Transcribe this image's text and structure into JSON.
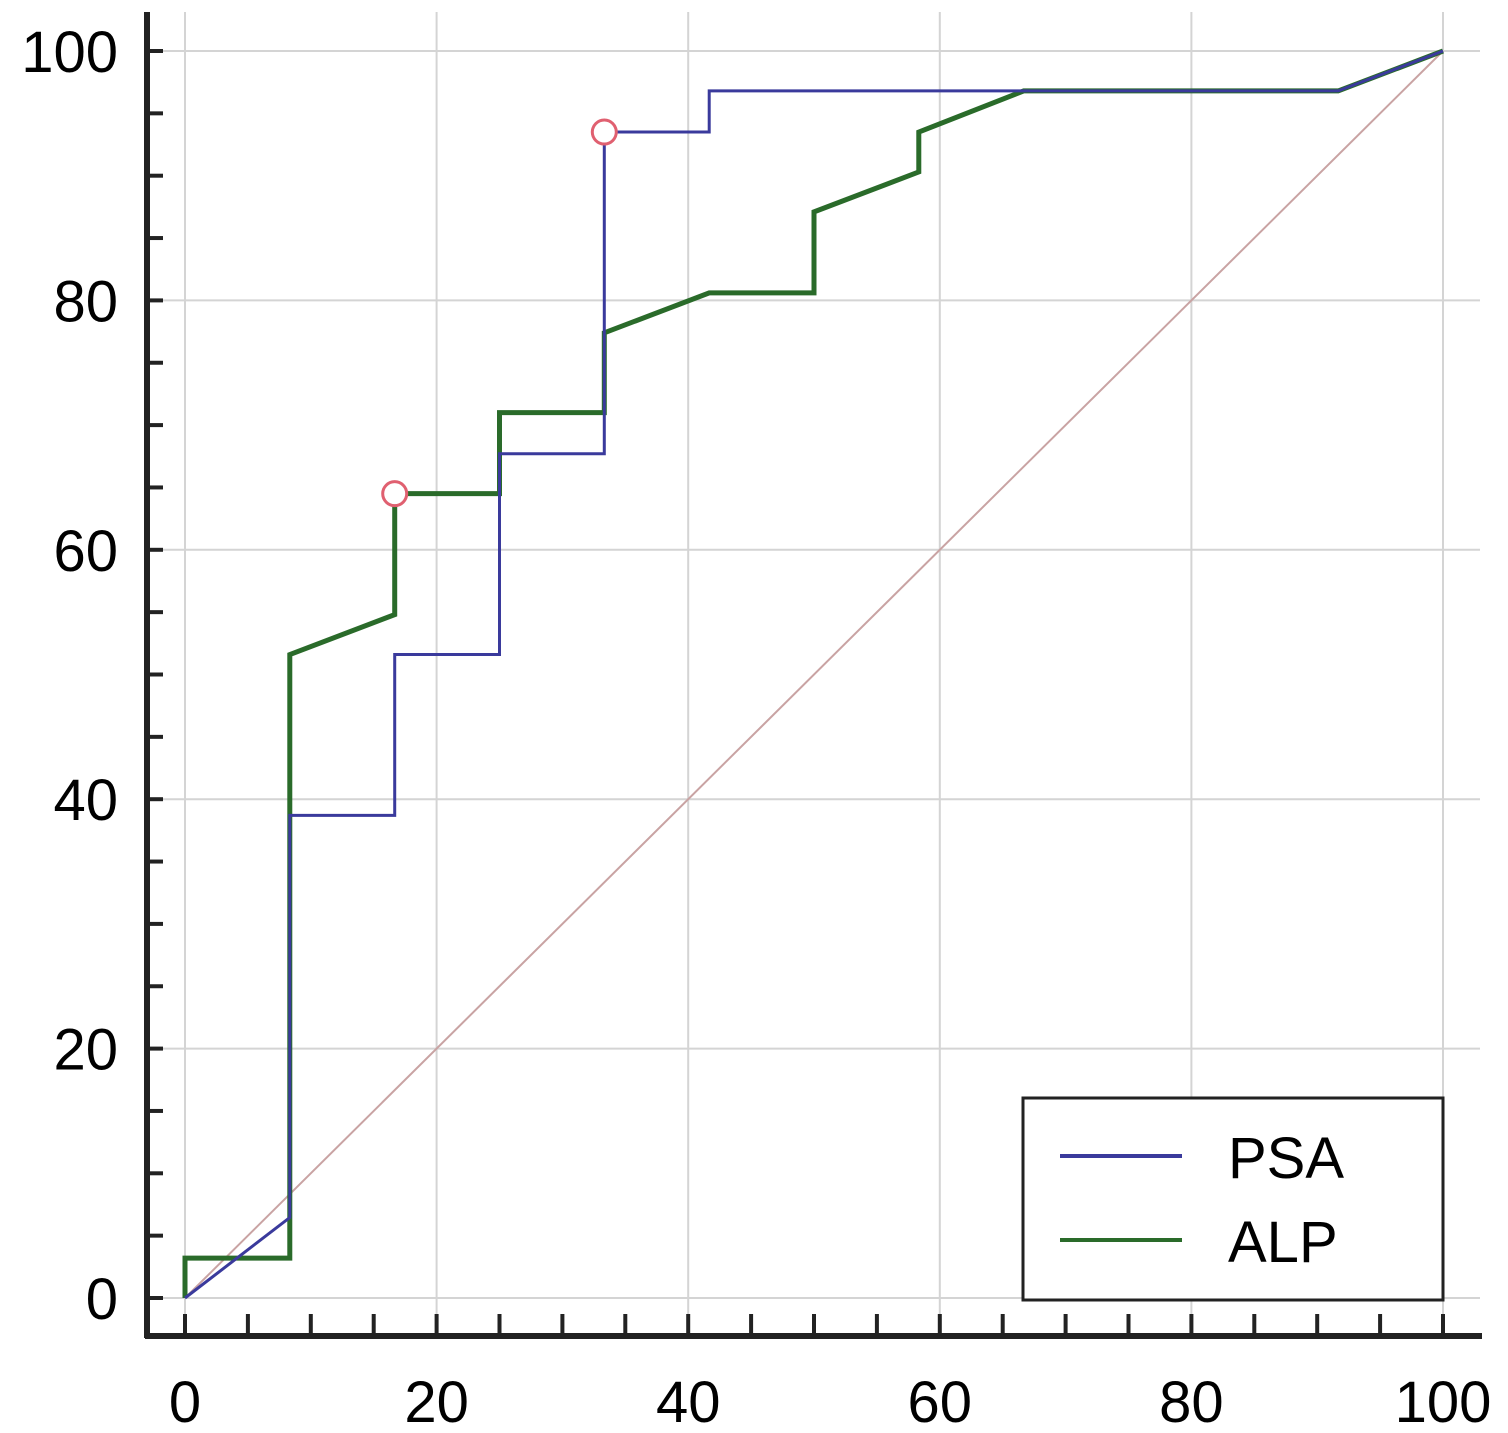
{
  "chart_data": {
    "type": "line",
    "title": "",
    "xlabel": "",
    "ylabel": "",
    "xlim": [
      0,
      100
    ],
    "ylim": [
      0,
      100
    ],
    "x_ticks": [
      "0",
      "20",
      "40",
      "60",
      "80",
      "100"
    ],
    "y_ticks": [
      "0",
      "20",
      "40",
      "60",
      "80",
      "100"
    ],
    "minor_tick_step": 5,
    "grid": true,
    "legend_position": "bottom-right",
    "series": [
      {
        "name": "PSA",
        "color": "#3a3a9c",
        "points": [
          [
            0,
            0
          ],
          [
            8.33,
            6.45
          ],
          [
            8.33,
            38.7
          ],
          [
            16.67,
            38.7
          ],
          [
            16.67,
            51.6
          ],
          [
            25,
            51.6
          ],
          [
            25,
            67.7
          ],
          [
            33.33,
            67.7
          ],
          [
            33.33,
            93.5
          ],
          [
            41.67,
            93.5
          ],
          [
            41.67,
            96.8
          ],
          [
            66.67,
            96.8
          ],
          [
            91.67,
            96.8
          ],
          [
            100,
            100
          ]
        ],
        "marker": [
          33.33,
          93.5
        ]
      },
      {
        "name": "ALP",
        "color": "#2a6b2a",
        "points": [
          [
            0,
            0
          ],
          [
            0,
            3.2
          ],
          [
            8.33,
            3.2
          ],
          [
            8.33,
            51.6
          ],
          [
            16.67,
            54.8
          ],
          [
            16.67,
            64.5
          ],
          [
            25,
            64.5
          ],
          [
            25,
            71.0
          ],
          [
            33.33,
            71.0
          ],
          [
            33.33,
            77.4
          ],
          [
            41.67,
            80.6
          ],
          [
            50,
            80.6
          ],
          [
            50,
            87.1
          ],
          [
            58.33,
            90.3
          ],
          [
            58.33,
            93.5
          ],
          [
            66.67,
            96.8
          ],
          [
            91.67,
            96.8
          ],
          [
            100,
            100
          ]
        ],
        "marker": [
          16.67,
          64.5
        ]
      }
    ],
    "reference_line": {
      "points": [
        [
          0,
          0
        ],
        [
          100,
          100
        ]
      ],
      "color": "#c9a3a3"
    },
    "marker_color": "#e06070"
  }
}
